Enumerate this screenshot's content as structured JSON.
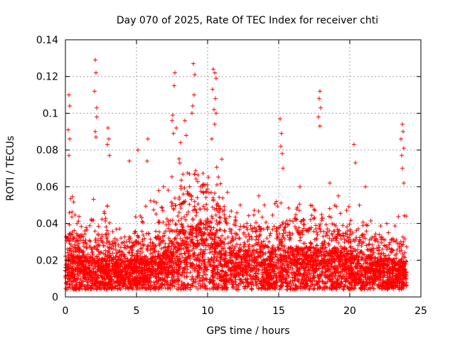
{
  "chart_data": {
    "type": "scatter",
    "title": "Day 070 of 2025, Rate Of TEC Index for receiver chti",
    "xlabel": "GPS time / hours",
    "ylabel": "ROTI / TECUs",
    "xlim": [
      0,
      25
    ],
    "ylim": [
      0,
      0.14
    ],
    "x_ticks": [
      0,
      5,
      10,
      15,
      20,
      25
    ],
    "x_tick_labels": [
      "0",
      "5",
      "10",
      "15",
      "20",
      "25"
    ],
    "y_ticks": [
      0,
      0.02,
      0.04,
      0.06,
      0.08,
      0.1,
      0.12,
      0.14
    ],
    "y_tick_labels": [
      "0",
      "0.02",
      "0.04",
      "0.06",
      "0.08",
      "0.1",
      "0.12",
      "0.14"
    ],
    "grid": true,
    "marker": "+",
    "color": "#ff0000",
    "series": [
      {
        "name": "ROTI",
        "points": [
          [
            0.25,
            0.11
          ],
          [
            0.3,
            0.104
          ],
          [
            0.2,
            0.091
          ],
          [
            0.3,
            0.086
          ],
          [
            0.25,
            0.077
          ],
          [
            2.1,
            0.129
          ],
          [
            2.15,
            0.122
          ],
          [
            2.05,
            0.112
          ],
          [
            2.2,
            0.103
          ],
          [
            2.2,
            0.098
          ],
          [
            2.1,
            0.09
          ],
          [
            2.15,
            0.087
          ],
          [
            3.0,
            0.092
          ],
          [
            3.05,
            0.086
          ],
          [
            2.95,
            0.083
          ],
          [
            3.1,
            0.077
          ],
          [
            4.5,
            0.074
          ],
          [
            5.1,
            0.08
          ],
          [
            5.8,
            0.086
          ],
          [
            5.75,
            0.074
          ],
          [
            6.9,
            0.06
          ],
          [
            7.7,
            0.122
          ],
          [
            7.65,
            0.115
          ],
          [
            7.55,
            0.099
          ],
          [
            7.5,
            0.096
          ],
          [
            7.6,
            0.089
          ],
          [
            7.8,
            0.092
          ],
          [
            8.1,
            0.084
          ],
          [
            8.4,
            0.096
          ],
          [
            8.5,
            0.088
          ],
          [
            8.9,
            0.1
          ],
          [
            9.0,
            0.127
          ],
          [
            9.1,
            0.121
          ],
          [
            9.05,
            0.11
          ],
          [
            8.95,
            0.104
          ],
          [
            10.4,
            0.124
          ],
          [
            10.5,
            0.122
          ],
          [
            10.6,
            0.119
          ],
          [
            10.35,
            0.113
          ],
          [
            10.55,
            0.108
          ],
          [
            10.45,
            0.102
          ],
          [
            10.6,
            0.1
          ],
          [
            10.5,
            0.094
          ],
          [
            10.3,
            0.086
          ],
          [
            11.0,
            0.075
          ],
          [
            11.4,
            0.057
          ],
          [
            12.3,
            0.05
          ],
          [
            13.6,
            0.055
          ],
          [
            14.0,
            0.05
          ],
          [
            15.1,
            0.097
          ],
          [
            15.2,
            0.089
          ],
          [
            15.15,
            0.082
          ],
          [
            15.25,
            0.078
          ],
          [
            15.3,
            0.07
          ],
          [
            16.5,
            0.06
          ],
          [
            17.9,
            0.112
          ],
          [
            17.85,
            0.108
          ],
          [
            17.95,
            0.103
          ],
          [
            17.8,
            0.098
          ],
          [
            17.9,
            0.093
          ],
          [
            18.6,
            0.062
          ],
          [
            19.2,
            0.055
          ],
          [
            20.3,
            0.083
          ],
          [
            20.4,
            0.073
          ],
          [
            21.1,
            0.06
          ],
          [
            22.6,
            0.04
          ],
          [
            23.7,
            0.094
          ],
          [
            23.75,
            0.09
          ],
          [
            23.6,
            0.086
          ],
          [
            23.8,
            0.081
          ],
          [
            23.65,
            0.077
          ],
          [
            23.7,
            0.07
          ],
          [
            23.8,
            0.062
          ]
        ],
        "envelope": {
          "hours": [
            0,
            0.5,
            1,
            1.5,
            2,
            2.5,
            3,
            3.5,
            4,
            4.5,
            5,
            5.5,
            6,
            6.5,
            7,
            7.5,
            8,
            8.5,
            9,
            9.5,
            10,
            10.5,
            11,
            11.5,
            12,
            12.5,
            13,
            13.5,
            14,
            14.5,
            15,
            15.5,
            16,
            16.5,
            17,
            17.5,
            18,
            18.5,
            19,
            19.5,
            20,
            20.5,
            21,
            21.5,
            22,
            22.5,
            23,
            23.5,
            24
          ],
          "median": [
            0.014,
            0.015,
            0.014,
            0.013,
            0.015,
            0.013,
            0.014,
            0.013,
            0.012,
            0.013,
            0.013,
            0.014,
            0.014,
            0.014,
            0.016,
            0.022,
            0.026,
            0.025,
            0.026,
            0.03,
            0.028,
            0.024,
            0.02,
            0.018,
            0.017,
            0.017,
            0.016,
            0.017,
            0.016,
            0.016,
            0.018,
            0.017,
            0.018,
            0.018,
            0.017,
            0.018,
            0.019,
            0.017,
            0.016,
            0.016,
            0.015,
            0.015,
            0.014,
            0.014,
            0.013,
            0.013,
            0.013,
            0.012,
            0.012
          ],
          "upper": [
            0.058,
            0.056,
            0.05,
            0.04,
            0.058,
            0.046,
            0.052,
            0.04,
            0.036,
            0.04,
            0.046,
            0.052,
            0.056,
            0.058,
            0.06,
            0.072,
            0.078,
            0.074,
            0.075,
            0.065,
            0.07,
            0.072,
            0.068,
            0.055,
            0.05,
            0.05,
            0.048,
            0.05,
            0.052,
            0.05,
            0.055,
            0.05,
            0.05,
            0.052,
            0.052,
            0.05,
            0.055,
            0.052,
            0.05,
            0.048,
            0.05,
            0.052,
            0.05,
            0.042,
            0.04,
            0.04,
            0.038,
            0.045,
            0.048
          ]
        }
      }
    ]
  }
}
